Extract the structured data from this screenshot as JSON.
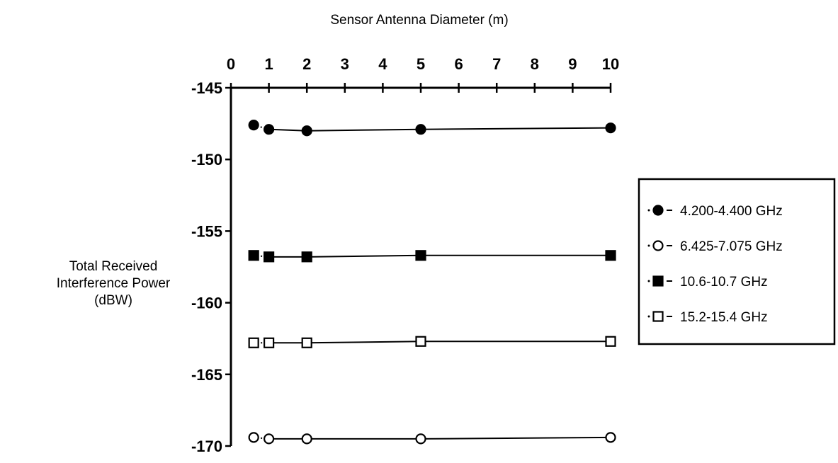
{
  "chart_data": {
    "type": "line",
    "title": "",
    "xlabel": "Sensor Antenna Diameter (m)",
    "ylabel": [
      "Total Received",
      "Interference Power",
      "(dBW)"
    ],
    "x_ticks": [
      0,
      1,
      2,
      3,
      4,
      5,
      6,
      7,
      8,
      9,
      10
    ],
    "y_ticks": [
      -145,
      -150,
      -155,
      -160,
      -165,
      -170
    ],
    "xlim": [
      0,
      10
    ],
    "ylim": [
      -170,
      -145
    ],
    "x_axis_position": "top",
    "grid": false,
    "legend_position": "right",
    "x": [
      0.6,
      1,
      2,
      5,
      10
    ],
    "series": [
      {
        "name": "4.200-4.400 GHz",
        "marker": "filled-circle",
        "values": [
          -147.6,
          -147.9,
          -148.0,
          -147.9,
          -147.8
        ]
      },
      {
        "name": "6.425-7.075 GHz",
        "marker": "open-circle",
        "values": [
          -169.4,
          -169.5,
          -169.5,
          -169.5,
          -169.4
        ]
      },
      {
        "name": "10.6-10.7 GHz",
        "marker": "filled-square",
        "values": [
          -156.7,
          -156.8,
          -156.8,
          -156.7,
          -156.7
        ]
      },
      {
        "name": "15.2-15.4 GHz",
        "marker": "open-square",
        "values": [
          -162.8,
          -162.8,
          -162.8,
          -162.7,
          -162.7
        ]
      }
    ],
    "colors": {
      "line": "#000000",
      "background": "#ffffff"
    }
  }
}
